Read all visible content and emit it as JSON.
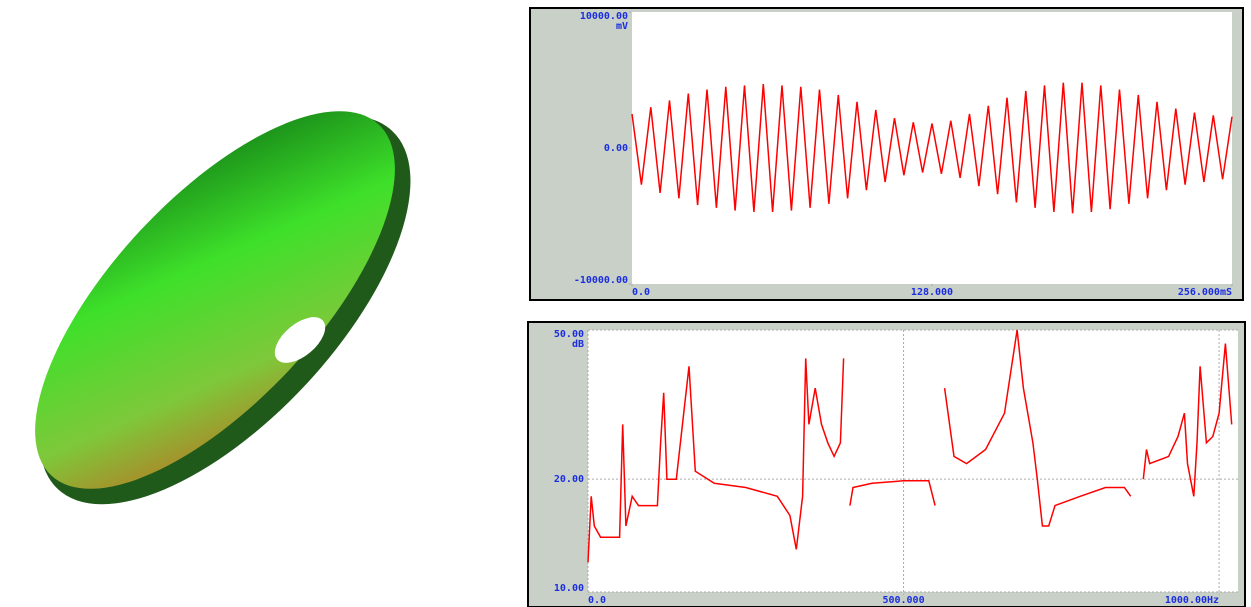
{
  "chart_data": [
    {
      "type": "line",
      "y_unit": "mV",
      "x": [
        0,
        4,
        8,
        12,
        16,
        20,
        24,
        28,
        32,
        36,
        40,
        44,
        48,
        52,
        56,
        60,
        64,
        68,
        72,
        76,
        80,
        84,
        88,
        92,
        96,
        100,
        104,
        108,
        112,
        116,
        120,
        124,
        128,
        132,
        136,
        140,
        144,
        148,
        152,
        156,
        160,
        164,
        168,
        172,
        176,
        180,
        184,
        188,
        192,
        196,
        200,
        204,
        208,
        212,
        216,
        220,
        224,
        228,
        232,
        236,
        240,
        244,
        248,
        252,
        256
      ],
      "series": [
        {
          "color": "#ff0000",
          "values": [
            2500,
            -2700,
            3000,
            -3300,
            3500,
            -3700,
            4000,
            -4200,
            4300,
            -4400,
            4500,
            -4600,
            4600,
            -4700,
            4700,
            -4700,
            4600,
            -4600,
            4500,
            -4400,
            4300,
            -4100,
            3900,
            -3700,
            3400,
            -3100,
            2800,
            -2500,
            2200,
            -2000,
            1900,
            -1800,
            1800,
            -1900,
            2000,
            -2200,
            2500,
            -2800,
            3100,
            -3400,
            3700,
            -4000,
            4200,
            -4400,
            4600,
            -4700,
            4800,
            -4800,
            4800,
            -4700,
            4600,
            -4500,
            4300,
            -4100,
            3900,
            -3700,
            3400,
            -3100,
            2900,
            -2700,
            2600,
            -2500,
            2400,
            -2300,
            2300
          ]
        }
      ],
      "xlim": [
        0,
        256
      ],
      "xticks": [
        {
          "value": 0,
          "label": "0.0"
        },
        {
          "value": 128,
          "label": "128.000"
        },
        {
          "value": 256,
          "label": "256.000mS"
        }
      ],
      "ylim": [
        -10000,
        10000
      ],
      "yticks": [
        {
          "value": -10000,
          "label": "-10000.00"
        },
        {
          "value": 0,
          "label": "0.00"
        },
        {
          "value": 10000,
          "label": "10000.00"
        }
      ]
    },
    {
      "type": "line",
      "y_unit": "dB",
      "log_y": true,
      "x": [
        0,
        5,
        10,
        20,
        40,
        50,
        55,
        60,
        70,
        80,
        100,
        110,
        115,
        120,
        125,
        140,
        160,
        170,
        200,
        250,
        300,
        320,
        330,
        340,
        345,
        350,
        360,
        370,
        380,
        390,
        400,
        405,
        408,
        415,
        420,
        450,
        500,
        540,
        550,
        555,
        565,
        580,
        600,
        630,
        660,
        680,
        690,
        700,
        705,
        712,
        720,
        730,
        740,
        780,
        820,
        850,
        860,
        870,
        880,
        885,
        890,
        920,
        935,
        945,
        950,
        960,
        965,
        970,
        980,
        990,
        1000,
        1010,
        1020
      ],
      "series": [
        {
          "color": "#ff0000",
          "values": [
            12,
            18,
            15,
            14,
            14,
            14,
            28,
            15,
            18,
            17,
            17,
            17,
            25,
            34,
            20,
            20,
            40,
            21,
            19.5,
            19,
            18,
            16,
            13,
            18,
            42,
            28,
            35,
            28,
            25,
            23,
            25,
            42,
            null,
            17,
            19,
            19.5,
            19.8,
            19.8,
            17,
            null,
            35,
            23,
            22,
            24,
            30,
            50,
            35,
            28,
            25,
            20,
            15,
            15,
            17,
            18,
            19,
            19,
            18,
            null,
            20,
            24,
            22,
            23,
            26,
            30,
            22,
            18,
            25,
            40,
            25,
            26,
            30,
            46,
            28
          ]
        }
      ],
      "xlim": [
        0,
        1030
      ],
      "xticks": [
        {
          "value": 0,
          "label": "0.0"
        },
        {
          "value": 500,
          "label": "500.000"
        },
        {
          "value": 1000,
          "label": "1000.00Hz"
        }
      ],
      "ylim": [
        10,
        50
      ],
      "yticks": [
        {
          "value": 10,
          "label": "10.00"
        },
        {
          "value": 20,
          "label": "20.00"
        },
        {
          "value": 50,
          "label": "50.00"
        }
      ],
      "grid": true
    }
  ]
}
